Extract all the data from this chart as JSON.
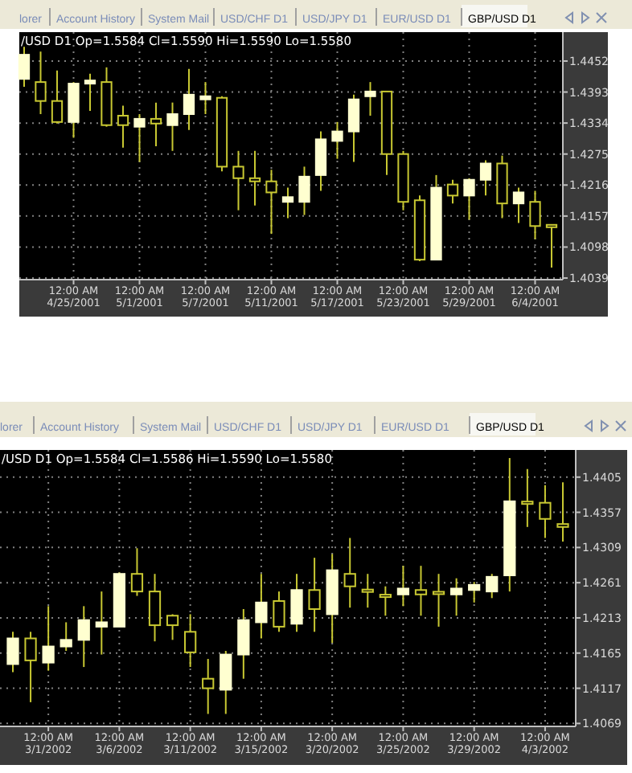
{
  "chart_data": [
    {
      "type": "candlestick",
      "title": "/USD D1 Op=1.5584 Cl=1.5590 Hi=1.5590 Lo=1.5580",
      "annotations": [
        "lorer",
        "Account History",
        "System Mail",
        "USD/CHF D1",
        "USD/JPY D1",
        "EUR/USD D1",
        "GBP/USD D1"
      ],
      "categories": [
        null,
        null,
        null,
        "12:00 AM\n4/25/2001",
        null,
        null,
        null,
        "12:00 AM\n5/1/2001",
        null,
        null,
        null,
        "12:00 AM\n5/7/2001",
        null,
        null,
        null,
        "12:00 AM\n5/11/2001",
        null,
        null,
        null,
        "12:00 AM\n5/17/2001",
        null,
        null,
        null,
        "12:00 AM\n5/23/2001",
        null,
        null,
        null,
        "12:00 AM\n5/29/2001",
        null,
        null,
        null,
        "12:00 AM\n6/4/2001",
        null
      ],
      "ohlc": [
        [
          1.4418,
          1.4479,
          1.4403,
          1.4464
        ],
        [
          1.4412,
          1.447,
          1.4351,
          1.4376
        ],
        [
          1.4376,
          1.4434,
          1.4333,
          1.4336
        ],
        [
          1.4336,
          1.4412,
          1.4306,
          1.4409
        ],
        [
          1.4409,
          1.4428,
          1.4357,
          1.4415
        ],
        [
          1.4412,
          1.444,
          1.4327,
          1.433
        ],
        [
          1.4348,
          1.4367,
          1.4287,
          1.433
        ],
        [
          1.4327,
          1.4351,
          1.426,
          1.4342
        ],
        [
          1.4342,
          1.4373,
          1.429,
          1.4333
        ],
        [
          1.433,
          1.4373,
          1.4281,
          1.4351
        ],
        [
          1.4351,
          1.4437,
          1.4321,
          1.4388
        ],
        [
          1.4379,
          1.4412,
          1.4351,
          1.4385
        ],
        [
          1.4382,
          1.4385,
          1.4242,
          1.4251
        ],
        [
          1.4251,
          1.4281,
          1.4168,
          1.4229
        ],
        [
          1.4229,
          1.4281,
          1.4177,
          1.4223
        ],
        [
          1.4223,
          1.4245,
          1.4123,
          1.4202
        ],
        [
          1.4184,
          1.4211,
          1.4153,
          1.4193
        ],
        [
          1.4184,
          1.4251,
          1.4159,
          1.4232
        ],
        [
          1.4235,
          1.4318,
          1.4205,
          1.4303
        ],
        [
          1.43,
          1.4336,
          1.4266,
          1.4318
        ],
        [
          1.4318,
          1.4388,
          1.426,
          1.4379
        ],
        [
          1.4385,
          1.4412,
          1.4348,
          1.4394
        ],
        [
          1.4394,
          1.4394,
          1.4235,
          1.4275
        ],
        [
          1.4275,
          1.4281,
          1.4168,
          1.4184
        ],
        [
          1.4187,
          1.4196,
          1.4071,
          1.4074
        ],
        [
          1.4074,
          1.4235,
          1.4074,
          1.4211
        ],
        [
          1.4217,
          1.4226,
          1.4181,
          1.4196
        ],
        [
          1.4196,
          1.4229,
          1.415,
          1.4226
        ],
        [
          1.4226,
          1.4263,
          1.4196,
          1.4257
        ],
        [
          1.4257,
          1.4272,
          1.4153,
          1.4181
        ],
        [
          1.4181,
          1.4211,
          1.4144,
          1.4202
        ],
        [
          1.4184,
          1.4205,
          1.4113,
          1.4138
        ],
        [
          1.4138,
          1.4141,
          1.4059,
          1.4138
        ]
      ],
      "ylim": [
        1.4036,
        1.4507
      ],
      "yticks": [
        1.4039,
        1.4098,
        1.4157,
        1.4216,
        1.4275,
        1.4334,
        1.4393,
        1.4452
      ],
      "grid": true
    },
    {
      "type": "candlestick",
      "title": "/USD D1 Op=1.5584 Cl=1.5586 Hi=1.5590 Lo=1.5580",
      "annotations": [
        "lorer",
        "Account History",
        "System Mail",
        "USD/CHF D1",
        "USD/JPY D1",
        "EUR/USD D1",
        "GBP/USD D1"
      ],
      "categories": [
        null,
        null,
        "12:00 AM\n3/1/2002",
        null,
        null,
        null,
        "12:00 AM\n3/6/2002",
        null,
        null,
        null,
        "12:00 AM\n3/11/2002",
        null,
        null,
        null,
        "12:00 AM\n3/15/2002",
        null,
        null,
        null,
        "12:00 AM\n3/20/2002",
        null,
        null,
        null,
        "12:00 AM\n3/25/2002",
        null,
        null,
        null,
        "12:00 AM\n3/29/2002",
        null,
        null,
        null,
        "12:00 AM\n4/3/2002",
        null
      ],
      "ohlc": [
        [
          1.415,
          1.4194,
          1.4139,
          1.4185
        ],
        [
          1.4185,
          1.4194,
          1.4098,
          1.4155
        ],
        [
          1.4152,
          1.4229,
          1.4141,
          1.4174
        ],
        [
          1.4174,
          1.4207,
          1.4168,
          1.4183
        ],
        [
          1.4183,
          1.4229,
          1.4146,
          1.421
        ],
        [
          1.4201,
          1.4249,
          1.4163,
          1.4207
        ],
        [
          1.4201,
          1.4275,
          1.4201,
          1.4273
        ],
        [
          1.4273,
          1.4308,
          1.4243,
          1.4249
        ],
        [
          1.4249,
          1.4273,
          1.4181,
          1.4203
        ],
        [
          1.4216,
          1.4218,
          1.4183,
          1.4203
        ],
        [
          1.4194,
          1.4218,
          1.4146,
          1.4166
        ],
        [
          1.413,
          1.4157,
          1.4082,
          1.4117
        ],
        [
          1.4115,
          1.4168,
          1.4082,
          1.4163
        ],
        [
          1.4163,
          1.4225,
          1.413,
          1.421
        ],
        [
          1.4207,
          1.4273,
          1.4185,
          1.4234
        ],
        [
          1.4236,
          1.4249,
          1.4194,
          1.4201
        ],
        [
          1.4205,
          1.4273,
          1.4194,
          1.4251
        ],
        [
          1.4251,
          1.4295,
          1.4194,
          1.4225
        ],
        [
          1.4218,
          1.43,
          1.4179,
          1.4278
        ],
        [
          1.4273,
          1.4322,
          1.4227,
          1.4256
        ],
        [
          1.4251,
          1.4273,
          1.4227,
          1.4249
        ],
        [
          1.4243,
          1.4256,
          1.4216,
          1.4243
        ],
        [
          1.4245,
          1.4284,
          1.4229,
          1.4253
        ],
        [
          1.4251,
          1.4284,
          1.4216,
          1.4245
        ],
        [
          1.4247,
          1.4273,
          1.4201,
          1.4247
        ],
        [
          1.4245,
          1.4267,
          1.4216,
          1.4253
        ],
        [
          1.4251,
          1.4262,
          1.4234,
          1.4258
        ],
        [
          1.4249,
          1.4273,
          1.424,
          1.4269
        ],
        [
          1.4271,
          1.4431,
          1.4249,
          1.4372
        ],
        [
          1.437,
          1.4416,
          1.4337,
          1.437
        ],
        [
          1.437,
          1.4394,
          1.4322,
          1.4348
        ],
        [
          1.4341,
          1.4398,
          1.4317,
          1.4337
        ]
      ],
      "ylim": [
        1.4065,
        1.4442
      ],
      "yticks": [
        1.4069,
        1.4117,
        1.4165,
        1.4213,
        1.4261,
        1.4309,
        1.4357,
        1.4405
      ],
      "grid": true
    }
  ]
}
